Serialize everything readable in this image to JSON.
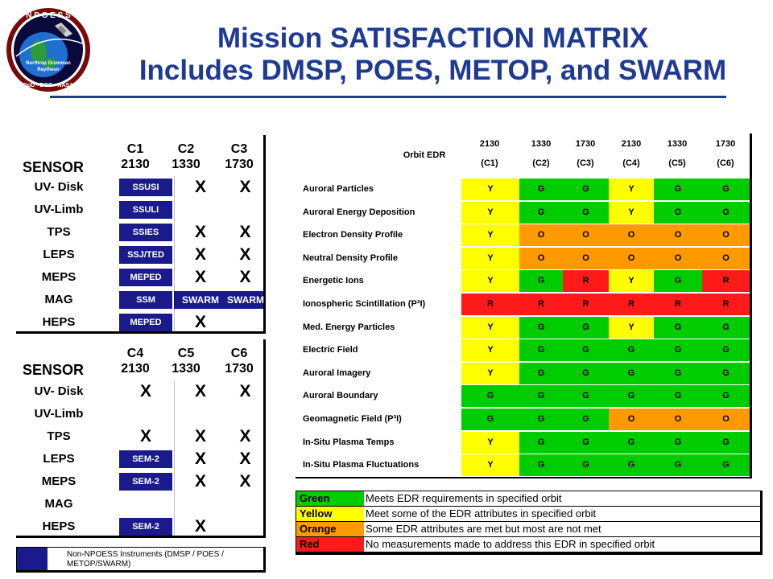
{
  "logo": {
    "text": "N P O E S S",
    "line1": "Northrop Grumman",
    "line2": "Raytheon",
    "bottom": "DoD • DOC • NASA"
  },
  "title": {
    "line1": "Mission SATISFACTION MATRIX",
    "line2": "Includes DMSP, POES, METOP, and SWARM"
  },
  "sensor_table_1": {
    "header": {
      "sensor": "SENSOR",
      "cols": [
        {
          "c": "C1",
          "v": "2130"
        },
        {
          "c": "C2",
          "v": "1330"
        },
        {
          "c": "C3",
          "v": "1730"
        }
      ]
    },
    "rows": [
      {
        "sensor": "UV- Disk",
        "inst": "SSUSI",
        "x2": "X",
        "x3": "X"
      },
      {
        "sensor": "UV-Limb",
        "inst": "SSULI",
        "x2": "",
        "x3": ""
      },
      {
        "sensor": "TPS",
        "inst": "SSIES",
        "x2": "X",
        "x3": "X"
      },
      {
        "sensor": "LEPS",
        "inst": "SSJ/TED",
        "x2": "X",
        "x3": "X"
      },
      {
        "sensor": "MEPS",
        "inst": "MEPED",
        "x2": "X",
        "x3": "X"
      },
      {
        "sensor": "MAG",
        "inst": "SSM",
        "x2": "SWARM",
        "x3": "SWARM"
      },
      {
        "sensor": "HEPS",
        "inst": "MEPED",
        "x2": "X",
        "x3": ""
      }
    ]
  },
  "sensor_table_2": {
    "header": {
      "sensor": "SENSOR",
      "cols": [
        {
          "c": "C4",
          "v": "2130"
        },
        {
          "c": "C5",
          "v": "1330"
        },
        {
          "c": "C6",
          "v": "1730"
        }
      ]
    },
    "rows": [
      {
        "sensor": "UV- Disk",
        "inst": "X",
        "x2": "X",
        "x3": "X"
      },
      {
        "sensor": "UV-Limb",
        "inst": "",
        "x2": "",
        "x3": ""
      },
      {
        "sensor": "TPS",
        "inst": "X",
        "x2": "X",
        "x3": "X"
      },
      {
        "sensor": "LEPS",
        "inst": "SEM-2",
        "x2": "X",
        "x3": "X"
      },
      {
        "sensor": "MEPS",
        "inst": "SEM-2",
        "x2": "X",
        "x3": "X"
      },
      {
        "sensor": "MAG",
        "inst": "",
        "x2": "",
        "x3": ""
      },
      {
        "sensor": "HEPS",
        "inst": "SEM-2",
        "x2": "X",
        "x3": ""
      }
    ]
  },
  "non_npoess_legend": "Non-NPOESS Instruments (DMSP / POES / METOP/SWARM)",
  "matrix": {
    "header_label": "Orbit EDR",
    "columns": [
      {
        "top": "2130",
        "bottom": "(C1)"
      },
      {
        "top": "1330",
        "bottom": "(C2)"
      },
      {
        "top": "1730",
        "bottom": "(C3)"
      },
      {
        "top": "2130",
        "bottom": "(C4)"
      },
      {
        "top": "1330",
        "bottom": "(C5)"
      },
      {
        "top": "1730",
        "bottom": "(C6)"
      }
    ],
    "rows": [
      {
        "edr": "Auroral Particles",
        "vals": [
          "Y",
          "G",
          "G",
          "Y",
          "G",
          "G"
        ]
      },
      {
        "edr": "Auroral Energy Deposition",
        "vals": [
          "Y",
          "G",
          "G",
          "Y",
          "G",
          "G"
        ]
      },
      {
        "edr": "Electron Density Profile",
        "vals": [
          "Y",
          "O",
          "O",
          "O",
          "O",
          "O"
        ]
      },
      {
        "edr": "Neutral Density Profile",
        "vals": [
          "Y",
          "O",
          "O",
          "O",
          "O",
          "O"
        ]
      },
      {
        "edr": "Energetic Ions",
        "vals": [
          "Y",
          "G",
          "R",
          "Y",
          "G",
          "R"
        ]
      },
      {
        "edr": "Ionospheric Scintillation (P³I)",
        "vals": [
          "R",
          "R",
          "R",
          "R",
          "R",
          "R"
        ]
      },
      {
        "edr": "Med. Energy Particles",
        "vals": [
          "Y",
          "G",
          "G",
          "Y",
          "G",
          "G"
        ]
      },
      {
        "edr": "Electric Field",
        "vals": [
          "Y",
          "G",
          "G",
          "G",
          "G",
          "G"
        ]
      },
      {
        "edr": "Auroral Imagery",
        "vals": [
          "Y",
          "G",
          "G",
          "G",
          "G",
          "G"
        ]
      },
      {
        "edr": "Auroral Boundary",
        "vals": [
          "G",
          "G",
          "G",
          "G",
          "G",
          "G"
        ]
      },
      {
        "edr": "Geomagnetic Field (P³I)",
        "vals": [
          "G",
          "G",
          "G",
          "O",
          "O",
          "O"
        ]
      },
      {
        "edr": "In-Situ Plasma Temps",
        "vals": [
          "Y",
          "G",
          "G",
          "G",
          "G",
          "G"
        ]
      },
      {
        "edr": "In-Situ Plasma Fluctuations",
        "vals": [
          "Y",
          "G",
          "G",
          "G",
          "G",
          "G"
        ]
      }
    ]
  },
  "colors": {
    "G": "#00cc00",
    "Y": "#ffff00",
    "O": "#ff9900",
    "R": "#ff1a1a",
    "navy": "#1a1a8c",
    "title": "#1f3a93"
  },
  "legend": [
    {
      "name": "Green",
      "desc": "Meets EDR requirements in specified orbit",
      "color": "#00cc00"
    },
    {
      "name": "Yellow",
      "desc": "Meet some of the EDR attributes in specified orbit",
      "color": "#ffff00"
    },
    {
      "name": "Orange",
      "desc": "Some EDR attributes are met but most are not met",
      "color": "#ff9900"
    },
    {
      "name": "Red",
      "desc": "No measurements made to address this EDR in specified orbit",
      "color": "#ff1a1a"
    }
  ]
}
